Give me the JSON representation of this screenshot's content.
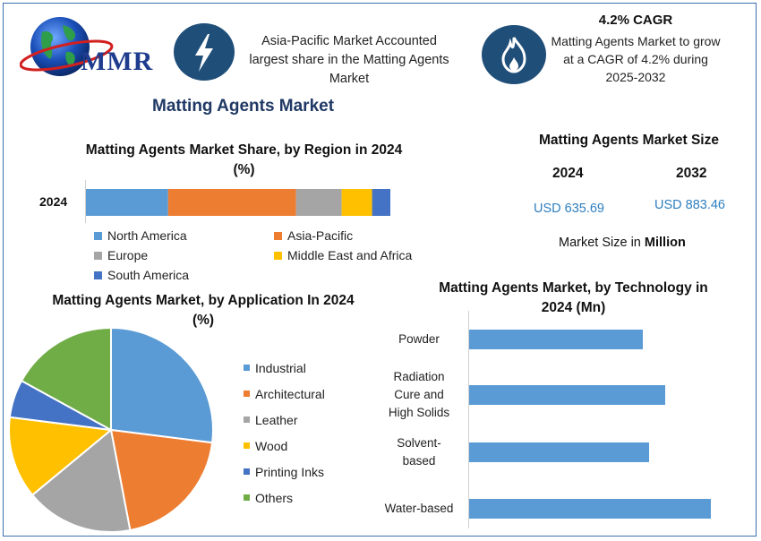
{
  "brand": {
    "logo_text": "MMR"
  },
  "header": {
    "info1": "Asia-Pacific Market Accounted largest share in the Matting Agents Market",
    "cagr_title": "4.2% CAGR",
    "cagr_text": "Matting Agents Market to grow at a CAGR of 4.2% during 2025-2032"
  },
  "main_title": "Matting Agents Market",
  "market_size": {
    "title": "Matting Agents Market Size",
    "year1": "2024",
    "value1": "USD 635.69",
    "year2": "2032",
    "value2": "USD 883.46",
    "unit_prefix": "Market Size in ",
    "unit_bold": "Million"
  },
  "colors": {
    "north_america": "#5b9bd5",
    "asia_pacific": "#ed7d31",
    "europe": "#a5a5a5",
    "middle_east": "#ffc000",
    "south_america": "#4472c4",
    "others": "#70ad47",
    "dark_blue": "#1f4e79"
  },
  "chart_data": [
    {
      "type": "bar",
      "orientation": "horizontal-stacked",
      "title": "Matting Agents Market Share, by Region in 2024 (%)",
      "categories": [
        "2024"
      ],
      "series": [
        {
          "name": "North America",
          "values": [
            27
          ],
          "color": "#5b9bd5"
        },
        {
          "name": "Asia-Pacific",
          "values": [
            42
          ],
          "color": "#ed7d31"
        },
        {
          "name": "Europe",
          "values": [
            15
          ],
          "color": "#a5a5a5"
        },
        {
          "name": "Middle East and Africa",
          "values": [
            10
          ],
          "color": "#ffc000"
        },
        {
          "name": "South America",
          "values": [
            6
          ],
          "color": "#4472c4"
        }
      ],
      "legend": "bottom"
    },
    {
      "type": "pie",
      "title": "Matting Agents Market, by Application In 2024 (%)",
      "labels": [
        "Industrial",
        "Architectural",
        "Leather",
        "Wood",
        "Printing Inks",
        "Others"
      ],
      "values": [
        27,
        20,
        17,
        13,
        6,
        17
      ],
      "colors": [
        "#5b9bd5",
        "#ed7d31",
        "#a5a5a5",
        "#ffc000",
        "#4472c4",
        "#70ad47"
      ],
      "legend": "right"
    },
    {
      "type": "bar",
      "orientation": "horizontal",
      "title": "Matting Agents Market, by Technology in 2024 (Mn)",
      "categories": [
        "Powder",
        "Radiation Cure and High Solids",
        "Solvent-based",
        "Water-based"
      ],
      "category_lines": [
        [
          "Powder"
        ],
        [
          "Radiation",
          "Cure and",
          "High Solids"
        ],
        [
          "Solvent-",
          "based"
        ],
        [
          "Water-based"
        ]
      ],
      "values": [
        190,
        215,
        197,
        265
      ],
      "color": "#5b9bd5"
    }
  ]
}
